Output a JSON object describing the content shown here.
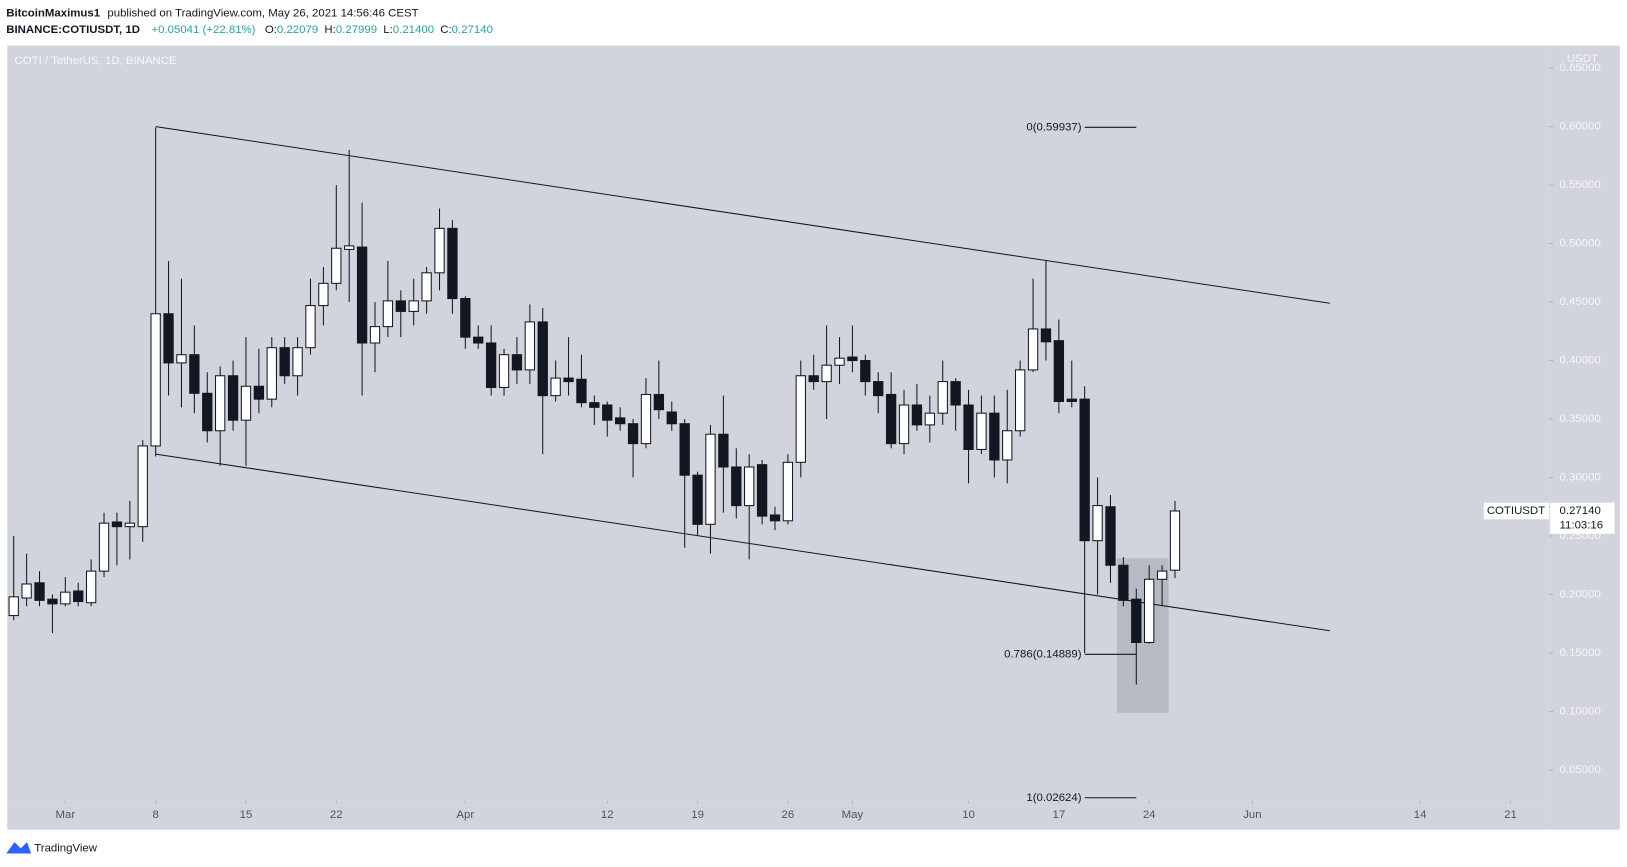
{
  "header": {
    "author": "BitcoinMaximus1",
    "published": "published on TradingView.com, May 26, 2021 14:56:46 CEST",
    "symbol": "BINANCE:COTIUSDT, 1D",
    "change": "+0.05041 (+22.81%)",
    "ohlc": [
      {
        "label": "O:",
        "value": "0.22079"
      },
      {
        "label": "H:",
        "value": "0.27999"
      },
      {
        "label": "L:",
        "value": "0.21400"
      },
      {
        "label": "C:",
        "value": "0.27140"
      }
    ]
  },
  "footer": {
    "brand": "TradingView"
  },
  "chart_data": {
    "type": "candlestick",
    "title": "COTI / TetherUS, 1D, BINANCE",
    "y_axis_unit": "USDT",
    "up_color": "#ffffff",
    "down_color": "#131722",
    "background": "#d1d4dc",
    "grid": false,
    "xlim": [
      "2021-02-24T12:00",
      "2021-06-24T00:00"
    ],
    "ylim": [
      0.0238,
      0.6692
    ],
    "yticks": [
      {
        "value": 0.05,
        "label": "0.05000"
      },
      {
        "value": 0.1,
        "label": "0.10000"
      },
      {
        "value": 0.15,
        "label": "0.15000"
      },
      {
        "value": 0.2,
        "label": "0.20000"
      },
      {
        "value": 0.25,
        "label": "0.25000"
      },
      {
        "value": 0.3,
        "label": "0.30000"
      },
      {
        "value": 0.35,
        "label": "0.35000"
      },
      {
        "value": 0.4,
        "label": "0.40000"
      },
      {
        "value": 0.45,
        "label": "0.45000"
      },
      {
        "value": 0.5,
        "label": "0.50000"
      },
      {
        "value": 0.55,
        "label": "0.55000"
      },
      {
        "value": 0.6,
        "label": "0.60000"
      },
      {
        "value": 0.65,
        "label": "0.65000"
      }
    ],
    "xticks": [
      {
        "value": "2021-03-01",
        "label": "Mar"
      },
      {
        "value": "2021-03-08",
        "label": "8"
      },
      {
        "value": "2021-03-15",
        "label": "15"
      },
      {
        "value": "2021-03-22",
        "label": "22"
      },
      {
        "value": "2021-04-01",
        "label": "Apr"
      },
      {
        "value": "2021-04-12",
        "label": "12"
      },
      {
        "value": "2021-04-19",
        "label": "19"
      },
      {
        "value": "2021-04-26",
        "label": "26"
      },
      {
        "value": "2021-05-01",
        "label": "May"
      },
      {
        "value": "2021-05-10",
        "label": "10"
      },
      {
        "value": "2021-05-17",
        "label": "17"
      },
      {
        "value": "2021-05-24",
        "label": "24"
      },
      {
        "value": "2021-06-01",
        "label": "Jun"
      },
      {
        "value": "2021-06-14",
        "label": "14"
      },
      {
        "value": "2021-06-21",
        "label": "21"
      }
    ],
    "x": [
      "2021-02-25",
      "2021-02-26",
      "2021-02-27",
      "2021-02-28",
      "2021-03-01",
      "2021-03-02",
      "2021-03-03",
      "2021-03-04",
      "2021-03-05",
      "2021-03-06",
      "2021-03-07",
      "2021-03-08",
      "2021-03-09",
      "2021-03-10",
      "2021-03-11",
      "2021-03-12",
      "2021-03-13",
      "2021-03-14",
      "2021-03-15",
      "2021-03-16",
      "2021-03-17",
      "2021-03-18",
      "2021-03-19",
      "2021-03-20",
      "2021-03-21",
      "2021-03-22",
      "2021-03-23",
      "2021-03-24",
      "2021-03-25",
      "2021-03-26",
      "2021-03-27",
      "2021-03-28",
      "2021-03-29",
      "2021-03-30",
      "2021-03-31",
      "2021-04-01",
      "2021-04-02",
      "2021-04-03",
      "2021-04-04",
      "2021-04-05",
      "2021-04-06",
      "2021-04-07",
      "2021-04-08",
      "2021-04-09",
      "2021-04-10",
      "2021-04-11",
      "2021-04-12",
      "2021-04-13",
      "2021-04-14",
      "2021-04-15",
      "2021-04-16",
      "2021-04-17",
      "2021-04-18",
      "2021-04-19",
      "2021-04-20",
      "2021-04-21",
      "2021-04-22",
      "2021-04-23",
      "2021-04-24",
      "2021-04-25",
      "2021-04-26",
      "2021-04-27",
      "2021-04-28",
      "2021-04-29",
      "2021-04-30",
      "2021-05-01",
      "2021-05-02",
      "2021-05-03",
      "2021-05-04",
      "2021-05-05",
      "2021-05-06",
      "2021-05-07",
      "2021-05-08",
      "2021-05-09",
      "2021-05-10",
      "2021-05-11",
      "2021-05-12",
      "2021-05-13",
      "2021-05-14",
      "2021-05-15",
      "2021-05-16",
      "2021-05-17",
      "2021-05-18",
      "2021-05-19",
      "2021-05-20",
      "2021-05-21",
      "2021-05-22",
      "2021-05-23",
      "2021-05-24",
      "2021-05-25",
      "2021-05-26"
    ],
    "open": [
      0.182,
      0.197,
      0.21,
      0.196,
      0.192,
      0.203,
      0.193,
      0.22,
      0.262,
      0.258,
      0.258,
      0.327,
      0.44,
      0.398,
      0.405,
      0.372,
      0.34,
      0.387,
      0.349,
      0.378,
      0.367,
      0.411,
      0.387,
      0.411,
      0.447,
      0.466,
      0.495,
      0.497,
      0.415,
      0.429,
      0.451,
      0.442,
      0.451,
      0.475,
      0.513,
      0.453,
      0.42,
      0.415,
      0.377,
      0.405,
      0.392,
      0.433,
      0.37,
      0.385,
      0.384,
      0.364,
      0.362,
      0.351,
      0.346,
      0.329,
      0.371,
      0.356,
      0.346,
      0.302,
      0.26,
      0.337,
      0.309,
      0.276,
      0.311,
      0.268,
      0.263,
      0.313,
      0.387,
      0.382,
      0.396,
      0.403,
      0.4,
      0.382,
      0.371,
      0.329,
      0.362,
      0.345,
      0.355,
      0.382,
      0.362,
      0.324,
      0.355,
      0.315,
      0.34,
      0.392,
      0.427,
      0.417,
      0.367,
      0.367,
      0.246,
      0.275,
      0.225,
      0.196,
      0.159,
      0.213,
      0.22079
    ],
    "high": [
      0.25,
      0.235,
      0.22,
      0.2,
      0.215,
      0.21,
      0.23,
      0.27,
      0.27,
      0.28,
      0.332,
      0.59937,
      0.485,
      0.47,
      0.43,
      0.39,
      0.395,
      0.4,
      0.42,
      0.41,
      0.42,
      0.42,
      0.42,
      0.47,
      0.48,
      0.55,
      0.58,
      0.535,
      0.45,
      0.485,
      0.46,
      0.47,
      0.48,
      0.53,
      0.52,
      0.455,
      0.43,
      0.43,
      0.41,
      0.42,
      0.448,
      0.445,
      0.4,
      0.42,
      0.405,
      0.37,
      0.365,
      0.36,
      0.35,
      0.385,
      0.4,
      0.365,
      0.35,
      0.305,
      0.345,
      0.37,
      0.325,
      0.32,
      0.315,
      0.275,
      0.32,
      0.4,
      0.405,
      0.43,
      0.42,
      0.43,
      0.405,
      0.39,
      0.39,
      0.375,
      0.38,
      0.37,
      0.4,
      0.385,
      0.375,
      0.37,
      0.37,
      0.375,
      0.4,
      0.47,
      0.486,
      0.435,
      0.4,
      0.378,
      0.3,
      0.285,
      0.232,
      0.205,
      0.225,
      0.225,
      0.27999
    ],
    "low": [
      0.178,
      0.19,
      0.19,
      0.167,
      0.19,
      0.19,
      0.19,
      0.215,
      0.225,
      0.23,
      0.245,
      0.318,
      0.37,
      0.36,
      0.355,
      0.33,
      0.31,
      0.34,
      0.31,
      0.355,
      0.36,
      0.38,
      0.37,
      0.405,
      0.43,
      0.46,
      0.45,
      0.37,
      0.39,
      0.42,
      0.42,
      0.43,
      0.44,
      0.46,
      0.44,
      0.41,
      0.41,
      0.37,
      0.37,
      0.38,
      0.38,
      0.32,
      0.365,
      0.37,
      0.36,
      0.345,
      0.335,
      0.34,
      0.3,
      0.325,
      0.35,
      0.34,
      0.24,
      0.25,
      0.235,
      0.27,
      0.265,
      0.23,
      0.26,
      0.255,
      0.26,
      0.3,
      0.375,
      0.35,
      0.38,
      0.39,
      0.37,
      0.355,
      0.325,
      0.32,
      0.34,
      0.33,
      0.345,
      0.34,
      0.295,
      0.32,
      0.3,
      0.295,
      0.335,
      0.39,
      0.4,
      0.355,
      0.36,
      0.15,
      0.2,
      0.21,
      0.19,
      0.123,
      0.158,
      0.19,
      0.214
    ],
    "close": [
      0.198,
      0.209,
      0.195,
      0.192,
      0.202,
      0.194,
      0.22,
      0.261,
      0.258,
      0.261,
      0.327,
      0.44,
      0.398,
      0.405,
      0.372,
      0.34,
      0.387,
      0.349,
      0.378,
      0.367,
      0.411,
      0.387,
      0.411,
      0.447,
      0.466,
      0.496,
      0.498,
      0.415,
      0.429,
      0.451,
      0.442,
      0.451,
      0.475,
      0.513,
      0.453,
      0.42,
      0.415,
      0.377,
      0.405,
      0.392,
      0.433,
      0.37,
      0.385,
      0.382,
      0.364,
      0.36,
      0.349,
      0.346,
      0.329,
      0.371,
      0.358,
      0.346,
      0.302,
      0.26,
      0.337,
      0.309,
      0.276,
      0.309,
      0.267,
      0.263,
      0.313,
      0.387,
      0.382,
      0.396,
      0.402,
      0.4,
      0.382,
      0.37,
      0.329,
      0.362,
      0.345,
      0.355,
      0.382,
      0.362,
      0.324,
      0.355,
      0.315,
      0.34,
      0.392,
      0.427,
      0.416,
      0.365,
      0.365,
      0.246,
      0.276,
      0.225,
      0.195,
      0.159,
      0.213,
      0.22,
      0.2714
    ],
    "trendlines": [
      {
        "x": [
          "2021-03-08",
          "2021-06-07"
        ],
        "y": [
          0.6,
          0.449
        ]
      },
      {
        "x": [
          "2021-03-08",
          "2021-06-07"
        ],
        "y": [
          0.32,
          0.169
        ]
      }
    ],
    "highlight": {
      "x": [
        "2021-05-22",
        "2021-05-25"
      ],
      "y": [
        0.099,
        0.231
      ],
      "color": "#b2b5be"
    },
    "fib_levels": {
      "x": [
        "2021-05-19",
        "2021-05-23"
      ],
      "levels": [
        {
          "value": 0.59937,
          "label": "0(0.59937)"
        },
        {
          "value": 0.14889,
          "label": "0.786(0.14889)"
        },
        {
          "value": 0.02624,
          "label": "1(0.02624)"
        }
      ]
    },
    "price_label": {
      "symbol": "COTIUSDT",
      "price": "0.27140",
      "countdown": "11:03:16"
    }
  }
}
